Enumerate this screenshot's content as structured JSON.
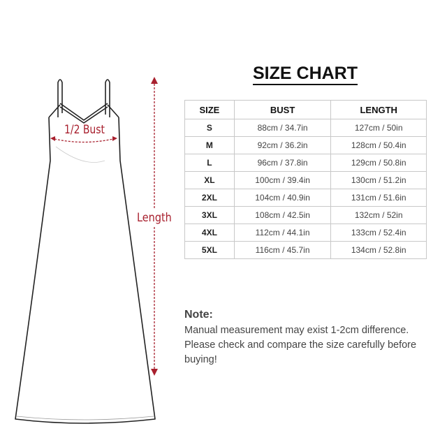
{
  "title": "SIZE CHART",
  "diagram": {
    "bust_label": "1/2 Bust",
    "length_label": "Length",
    "accent_color": "#a8202e"
  },
  "table": {
    "headers": [
      "SIZE",
      "BUST",
      "LENGTH"
    ],
    "rows": [
      [
        "S",
        "88cm / 34.7in",
        "127cm / 50in"
      ],
      [
        "M",
        "92cm / 36.2in",
        "128cm / 50.4in"
      ],
      [
        "L",
        "96cm / 37.8in",
        "129cm / 50.8in"
      ],
      [
        "XL",
        "100cm / 39.4in",
        "130cm / 51.2in"
      ],
      [
        "2XL",
        "104cm / 40.9in",
        "131cm / 51.6in"
      ],
      [
        "3XL",
        "108cm / 42.5in",
        "132cm / 52in"
      ],
      [
        "4XL",
        "112cm / 44.1in",
        "133cm / 52.4in"
      ],
      [
        "5XL",
        "116cm / 45.7in",
        "134cm / 52.8in"
      ]
    ]
  },
  "note": {
    "title": "Note:",
    "lines": [
      "Manual measurement may exist 1-2cm difference.",
      "Please check and compare the size carefully before buying!"
    ]
  }
}
